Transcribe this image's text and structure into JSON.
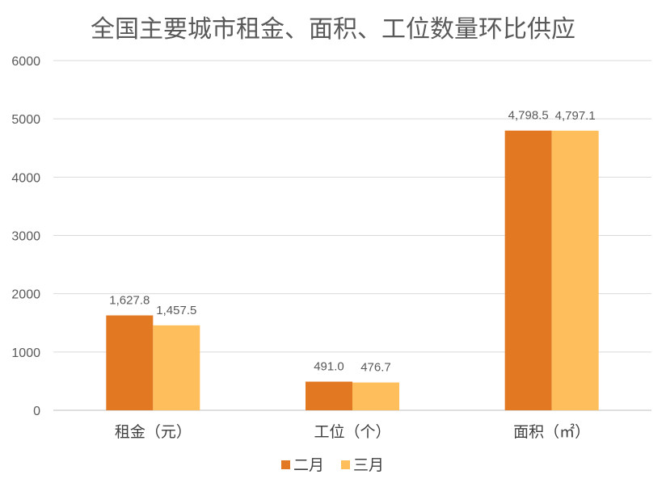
{
  "chart_data": {
    "type": "bar",
    "title": "全国主要城市租金、面积、工位数量环比供应",
    "categories": [
      "租金（元）",
      "工位（个）",
      "面积（㎡）"
    ],
    "series": [
      {
        "name": "二月",
        "color": "#E37822",
        "values": [
          1627.8,
          491.0,
          4798.5
        ],
        "labels": [
          "1,627.8",
          "491.0",
          "4,798.5"
        ]
      },
      {
        "name": "三月",
        "color": "#FFBE5C",
        "values": [
          1457.5,
          476.7,
          4797.1
        ],
        "labels": [
          "1,457.5",
          "476.7",
          "4,797.1"
        ]
      }
    ],
    "ylim": [
      0,
      6000
    ],
    "yticks": [
      0,
      1000,
      2000,
      3000,
      4000,
      5000,
      6000
    ],
    "grid": true,
    "legend": "bottom",
    "xlabel": "",
    "ylabel": ""
  }
}
